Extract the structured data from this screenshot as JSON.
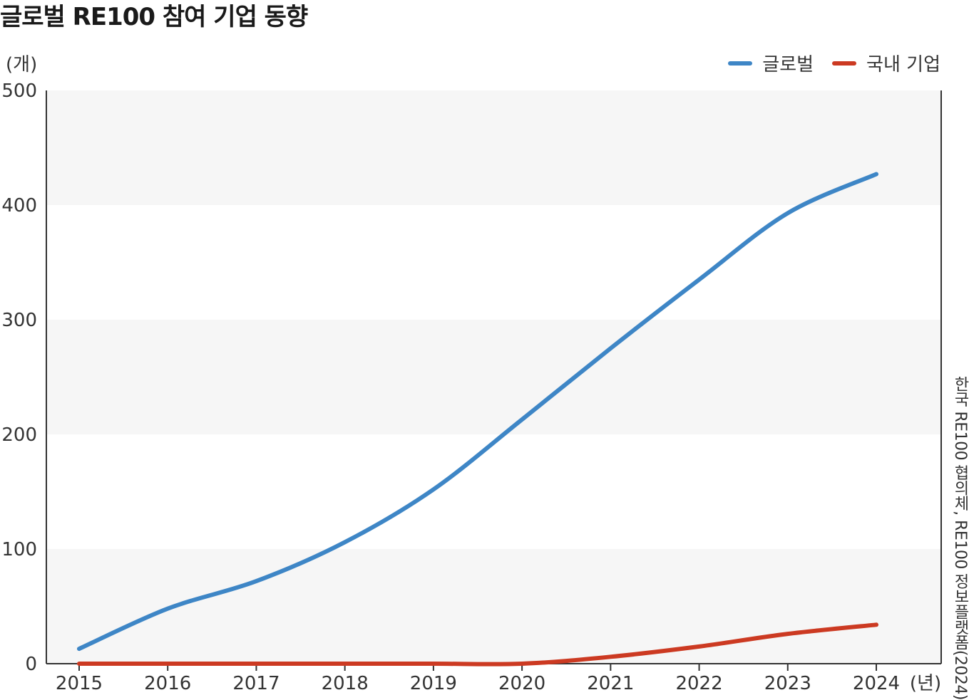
{
  "title": "글로벌 RE100 참여 기업 동향",
  "source": "한국 RE100 협의체, RE100 정보플랫폼(2024)",
  "colors": {
    "global": "#3e86c6",
    "domestic": "#cc3a22",
    "band": "#f6f6f6",
    "axis": "#333333"
  },
  "chart_data": {
    "type": "line",
    "title": "글로벌 RE100 참여 기업 동향",
    "ylabel": "(개)",
    "xlabel": "(년)",
    "x": [
      2015,
      2016,
      2017,
      2018,
      2019,
      2020,
      2021,
      2022,
      2023,
      2024
    ],
    "ylim": [
      0,
      500
    ],
    "yticks": [
      0,
      100,
      200,
      300,
      400,
      500
    ],
    "grid": "alternating horizontal bands",
    "legend_position": "top-right",
    "series": [
      {
        "name": "글로벌",
        "values": [
          13,
          48,
          72,
          106,
          152,
          213,
          275,
          335,
          393,
          427
        ]
      },
      {
        "name": "국내 기업",
        "values": [
          0,
          0,
          0,
          0,
          0,
          0,
          6,
          15,
          26,
          34
        ]
      }
    ]
  }
}
